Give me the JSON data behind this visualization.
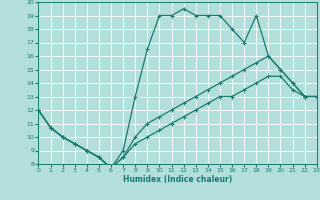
{
  "xlabel": "Humidex (Indice chaleur)",
  "bg_color": "#b2dfdb",
  "grid_color": "#ffffff",
  "line_color": "#1a7a6e",
  "xlim": [
    0,
    23
  ],
  "ylim": [
    8,
    20
  ],
  "xticks": [
    0,
    1,
    2,
    3,
    4,
    5,
    6,
    7,
    8,
    9,
    10,
    11,
    12,
    13,
    14,
    15,
    16,
    17,
    18,
    19,
    20,
    21,
    22,
    23
  ],
  "yticks": [
    8,
    9,
    10,
    11,
    12,
    13,
    14,
    15,
    16,
    17,
    18,
    19,
    20
  ],
  "line1_x": [
    0,
    1,
    2,
    3,
    4,
    5,
    6,
    7,
    8,
    9,
    10,
    11,
    12,
    13,
    14,
    15,
    16,
    17,
    18,
    19,
    20,
    21,
    22,
    23
  ],
  "line1_y": [
    12,
    10.7,
    10,
    9.5,
    9,
    8.5,
    7.7,
    9,
    13,
    16.5,
    19,
    19,
    19.5,
    19,
    19,
    19,
    18,
    17,
    19,
    16,
    15,
    14,
    13,
    13
  ],
  "line2_x": [
    0,
    1,
    2,
    3,
    4,
    5,
    6,
    7,
    8,
    9,
    10,
    11,
    12,
    13,
    14,
    15,
    16,
    17,
    18,
    19,
    20,
    21,
    22,
    23
  ],
  "line2_y": [
    12,
    10.7,
    10,
    9.5,
    9,
    8.5,
    7.7,
    8.5,
    10,
    11,
    11.5,
    12,
    12.5,
    13,
    13.5,
    14,
    14.5,
    15,
    15.5,
    16,
    15,
    14,
    13,
    13
  ],
  "line3_x": [
    0,
    1,
    2,
    3,
    4,
    5,
    6,
    7,
    8,
    9,
    10,
    11,
    12,
    13,
    14,
    15,
    16,
    17,
    18,
    19,
    20,
    21,
    22,
    23
  ],
  "line3_y": [
    12,
    10.7,
    10,
    9.5,
    9,
    8.5,
    7.7,
    8.5,
    9.5,
    10,
    10.5,
    11,
    11.5,
    12,
    12.5,
    13,
    13,
    13.5,
    14,
    14.5,
    14.5,
    13.5,
    13,
    13
  ]
}
